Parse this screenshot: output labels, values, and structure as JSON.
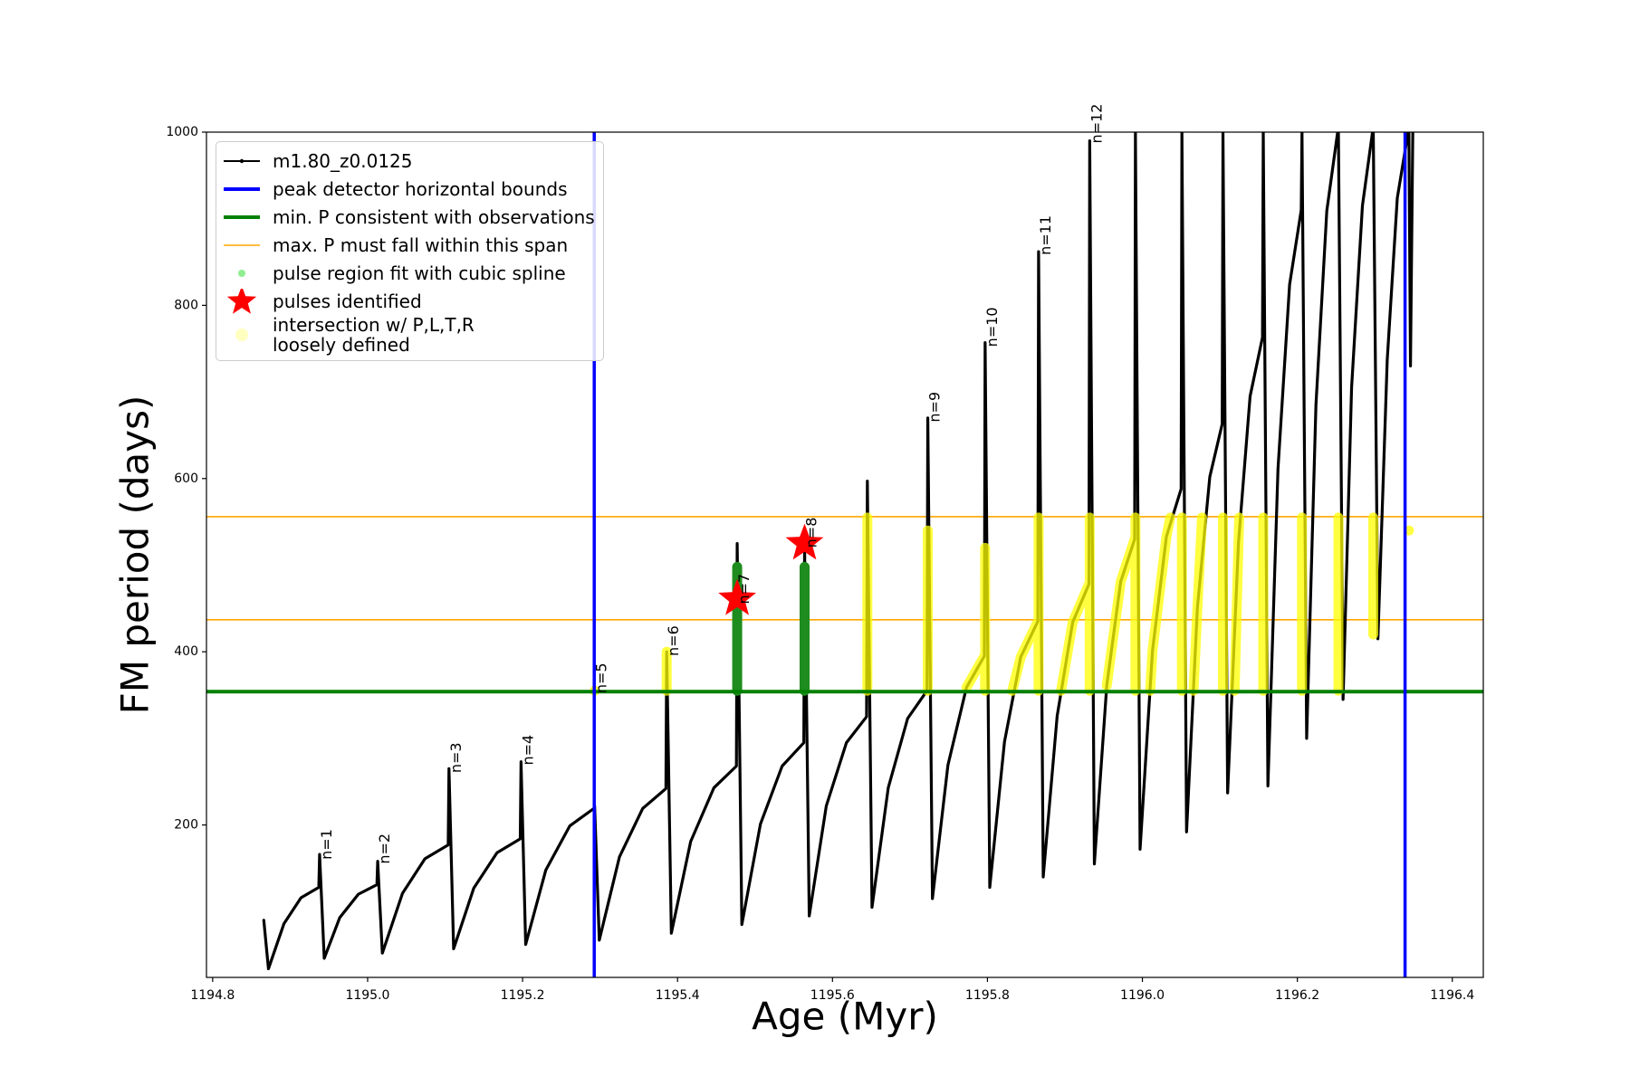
{
  "chart_data": {
    "type": "line",
    "xlabel": "Age (Myr)",
    "ylabel": "FM period (days)",
    "xlim": [
      1194.792,
      1196.44
    ],
    "ylim": [
      24,
      1000
    ],
    "xticks": [
      1194.8,
      {
        "value": 1195,
        "label": "1195.0"
      },
      1195.2,
      1195.4,
      1195.6,
      1195.8,
      {
        "value": 1196,
        "label": "1196.0"
      },
      1196.2,
      1196.4
    ],
    "yticks": [
      200,
      400,
      600,
      800,
      1000
    ],
    "series": [
      {
        "name": "m1.80_z0.0125",
        "color": "#000000",
        "kind": "line",
        "marker": ".",
        "x": [
          1194.866,
          1194.872,
          1194.892,
          1194.914,
          1194.937,
          1194.938,
          1194.944,
          1194.964,
          1194.988,
          1195.012,
          1195.013,
          1195.019,
          1195.045,
          1195.074,
          1195.104,
          1195.105,
          1195.111,
          1195.137,
          1195.167,
          1195.197,
          1195.198,
          1195.204,
          1195.23,
          1195.261,
          1195.292,
          1195.293,
          1195.299,
          1195.325,
          1195.355,
          1195.385,
          1195.386,
          1195.392,
          1195.417,
          1195.447,
          1195.476,
          1195.477,
          1195.483,
          1195.507,
          1195.535,
          1195.563,
          1195.564,
          1195.57,
          1195.592,
          1195.618,
          1195.644,
          1195.645,
          1195.651,
          1195.672,
          1195.697,
          1195.722,
          1195.723,
          1195.729,
          1195.749,
          1195.773,
          1195.796,
          1195.797,
          1195.803,
          1195.822,
          1195.843,
          1195.865,
          1195.866,
          1195.872,
          1195.89,
          1195.91,
          1195.931,
          1195.932,
          1195.938,
          1195.954,
          1195.972,
          1195.99,
          1195.991,
          1195.997,
          1196.013,
          1196.031,
          1196.05,
          1196.051,
          1196.057,
          1196.071,
          1196.087,
          1196.103,
          1196.104,
          1196.11,
          1196.124,
          1196.139,
          1196.155,
          1196.156,
          1196.162,
          1196.175,
          1196.19,
          1196.205,
          1196.206,
          1196.212,
          1196.224,
          1196.238,
          1196.252,
          1196.253,
          1196.259,
          1196.27,
          1196.284,
          1196.297,
          1196.298,
          1196.304,
          1196.316,
          1196.329,
          1196.343,
          1196.344,
          1196.346,
          1196.349
        ],
        "values": [
          90,
          34,
          86,
          116,
          128,
          166,
          46,
          93,
          120,
          131,
          158,
          52,
          121,
          161,
          177,
          265,
          57,
          127,
          168,
          184,
          273,
          62,
          148,
          199,
          219,
          222,
          67,
          163,
          219,
          242,
          400,
          75,
          181,
          243,
          268,
          525,
          85,
          201,
          268,
          295,
          520,
          95,
          222,
          295,
          325,
          597,
          105,
          243,
          323,
          355,
          670,
          115,
          269,
          359,
          395,
          757,
          128,
          296,
          394,
          435,
          862,
          140,
          326,
          434,
          478,
          990,
          155,
          361,
          481,
          530,
          1000,
          172,
          401,
          533,
          588,
          1000,
          192,
          451,
          602,
          663,
          1000,
          237,
          526,
          695,
          763,
          1000,
          245,
          611,
          824,
          910,
          1000,
          300,
          685,
          909,
          1000,
          1000,
          345,
          705,
          915,
          1000,
          1000,
          415,
          737,
          924,
          1000,
          1000,
          730,
          1000
        ]
      },
      {
        "name": "peak detector horizontal bounds",
        "color": "#0000ff",
        "kind": "vline",
        "x": [
          1195.2925,
          1196.339
        ]
      },
      {
        "name": "min. P consistent with observations",
        "color": "#008000",
        "kind": "hline",
        "values": [
          354
        ]
      },
      {
        "name": "max. P must fall within this span",
        "color": "#ffa500",
        "kind": "hline",
        "values": [
          437,
          556
        ]
      },
      {
        "name": "pulse region fit with cubic spline",
        "color": "#1e8c1e",
        "kind": "line",
        "marker": "o",
        "x": [
          1195.477,
          1195.477,
          null,
          1195.564,
          1195.564
        ],
        "values": [
          355,
          498,
          null,
          355,
          498
        ]
      },
      {
        "name": "pulses identified",
        "color": "#ff0000",
        "kind": "scatter",
        "marker": "star",
        "x": [
          1195.477,
          1195.564
        ],
        "values": [
          461,
          525
        ]
      },
      {
        "name": "intersection w/ P,L,T,R\nloosely defined",
        "color": "#ffff00",
        "kind": "line",
        "marker": "o",
        "alpha": 0.75,
        "x": [
          1195.293,
          null,
          1195.386,
          1195.386,
          null,
          1195.645,
          1195.645,
          null,
          1195.723,
          1195.723,
          null,
          1195.773,
          1195.796,
          null,
          1195.797,
          1195.797,
          null,
          1195.832,
          1195.843,
          1195.865,
          null,
          1195.866,
          1195.866,
          null,
          1195.895,
          1195.91,
          1195.931,
          null,
          1195.932,
          1195.932,
          null,
          1195.954,
          1195.972,
          1195.99,
          null,
          1195.991,
          1195.991,
          null,
          1196.01,
          1196.013,
          1196.031,
          1196.036,
          null,
          1196.051,
          1196.051,
          null,
          1196.066,
          1196.071,
          1196.077,
          null,
          1196.104,
          1196.104,
          null,
          1196.119,
          1196.124,
          1196.125,
          null,
          1196.156,
          1196.156,
          null,
          1196.206,
          1196.206,
          null,
          1196.253,
          1196.253,
          null,
          1196.298,
          1196.298,
          null,
          1196.344
        ],
        "values": [
          355,
          null,
          355,
          400,
          null,
          355,
          555,
          null,
          355,
          540,
          null,
          359,
          395,
          null,
          355,
          520,
          null,
          355,
          394,
          435,
          null,
          355,
          555,
          null,
          355,
          434,
          478,
          null,
          355,
          555,
          null,
          361,
          481,
          530,
          null,
          355,
          555,
          null,
          355,
          401,
          533,
          555,
          null,
          355,
          555,
          null,
          355,
          451,
          555,
          null,
          355,
          555,
          null,
          355,
          526,
          555,
          null,
          355,
          555,
          null,
          355,
          555,
          null,
          355,
          555,
          null,
          420,
          555,
          null,
          540
        ]
      }
    ],
    "annotations": [
      {
        "text": "n=1",
        "x": 1194.938,
        "y": 160
      },
      {
        "text": "n=2",
        "x": 1195.013,
        "y": 155
      },
      {
        "text": "n=3",
        "x": 1195.105,
        "y": 260
      },
      {
        "text": "n=4",
        "x": 1195.198,
        "y": 269
      },
      {
        "text": "n=5",
        "x": 1195.293,
        "y": 352
      },
      {
        "text": "n=6",
        "x": 1195.386,
        "y": 395
      },
      {
        "text": "n=7",
        "x": 1195.477,
        "y": 455
      },
      {
        "text": "n=8",
        "x": 1195.564,
        "y": 520
      },
      {
        "text": "n=9",
        "x": 1195.723,
        "y": 665
      },
      {
        "text": "n=10",
        "x": 1195.797,
        "y": 752
      },
      {
        "text": "n=11",
        "x": 1195.866,
        "y": 858
      },
      {
        "text": "n=12",
        "x": 1195.932,
        "y": 987
      }
    ],
    "legend": "upper left"
  }
}
